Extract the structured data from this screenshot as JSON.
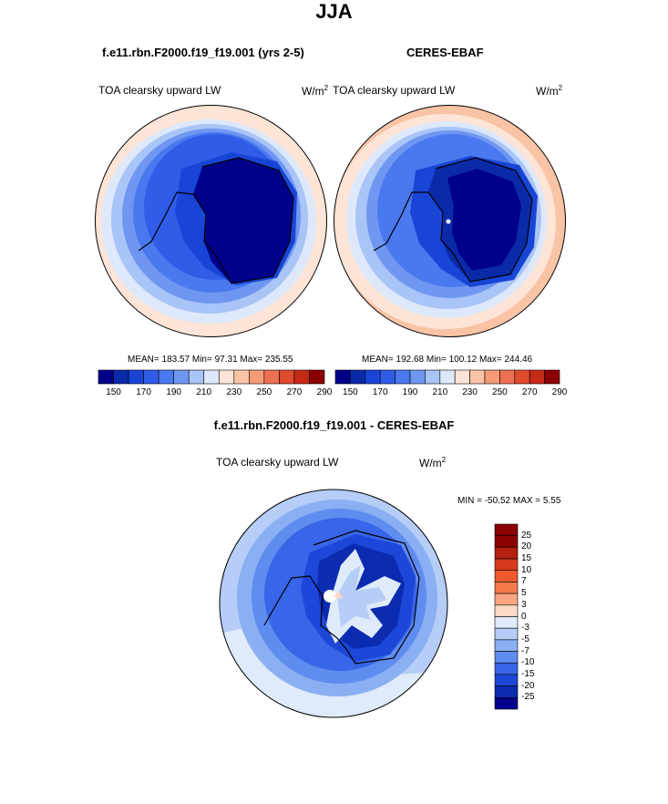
{
  "figure": {
    "title": "JJA",
    "left_panel": {
      "case": "f.e11.rbn.F2000.f19_f19.001 (yrs 2-5)",
      "variable": "TOA clearsky upward LW",
      "units_base": "W/m",
      "units_exp": "2",
      "stats": "MEAN= 183.57  Min=  97.31  Max= 235.55"
    },
    "right_panel": {
      "case": "CERES-EBAF",
      "variable": "TOA clearsky upward LW",
      "units_base": "W/m",
      "units_exp": "2",
      "stats": "MEAN= 192.68  Min= 100.12  Max= 244.46"
    },
    "diff_panel": {
      "case": "f.e11.rbn.F2000.f19_f19.001 - CERES-EBAF",
      "variable": "TOA clearsky upward LW",
      "units_base": "W/m",
      "units_exp": "2",
      "minmax": "MIN = -50.52 MAX =   5.55"
    }
  },
  "chart_data": [
    {
      "type": "heatmap",
      "projection": "polar-stereographic (south pole)",
      "title": "f.e11.rbn.F2000.f19_f19.001 (yrs 2-5)",
      "variable": "TOA clearsky upward LW",
      "units": "W/m2",
      "mean": 183.57,
      "min": 97.31,
      "max": 235.55,
      "colorbar_levels": [
        150,
        160,
        170,
        180,
        190,
        200,
        210,
        220,
        230,
        240,
        250,
        260,
        270,
        280,
        290
      ],
      "colorbar_labels": [
        "150",
        "170",
        "190",
        "210",
        "230",
        "250",
        "270",
        "290"
      ]
    },
    {
      "type": "heatmap",
      "projection": "polar-stereographic (south pole)",
      "title": "CERES-EBAF",
      "variable": "TOA clearsky upward LW",
      "units": "W/m2",
      "mean": 192.68,
      "min": 100.12,
      "max": 244.46,
      "colorbar_levels": [
        150,
        160,
        170,
        180,
        190,
        200,
        210,
        220,
        230,
        240,
        250,
        260,
        270,
        280,
        290
      ],
      "colorbar_labels": [
        "150",
        "170",
        "190",
        "210",
        "230",
        "250",
        "270",
        "290"
      ]
    },
    {
      "type": "heatmap",
      "projection": "polar-stereographic (south pole)",
      "title": "f.e11.rbn.F2000.f19_f19.001 - CERES-EBAF",
      "variable": "TOA clearsky upward LW",
      "units": "W/m2",
      "min": -50.52,
      "max": 5.55,
      "colorbar_labels": [
        "25",
        "20",
        "15",
        "10",
        "7",
        "5",
        "3",
        "0",
        "-3",
        "-5",
        "-7",
        "-10",
        "-15",
        "-20",
        "-25"
      ]
    }
  ],
  "colors": {
    "seq": [
      "#00008b",
      "#0b2aa8",
      "#1845d6",
      "#2f5de8",
      "#4a79ef",
      "#6f97f2",
      "#a9c4f6",
      "#dde8fb",
      "#fde4d6",
      "#f9c3a6",
      "#f49c78",
      "#ee7052",
      "#e04a2e",
      "#c52a16",
      "#8b0000"
    ],
    "diff": [
      "#8b0000",
      "#b5200f",
      "#d63a1c",
      "#ee5a2e",
      "#f47a4c",
      "#f9a680",
      "#fdd9c6",
      "#dfeafb",
      "#b5cdf7",
      "#8aaff2",
      "#5f8cef",
      "#3766e8",
      "#1d47d8",
      "#0b2bb0",
      "#00008b"
    ]
  }
}
